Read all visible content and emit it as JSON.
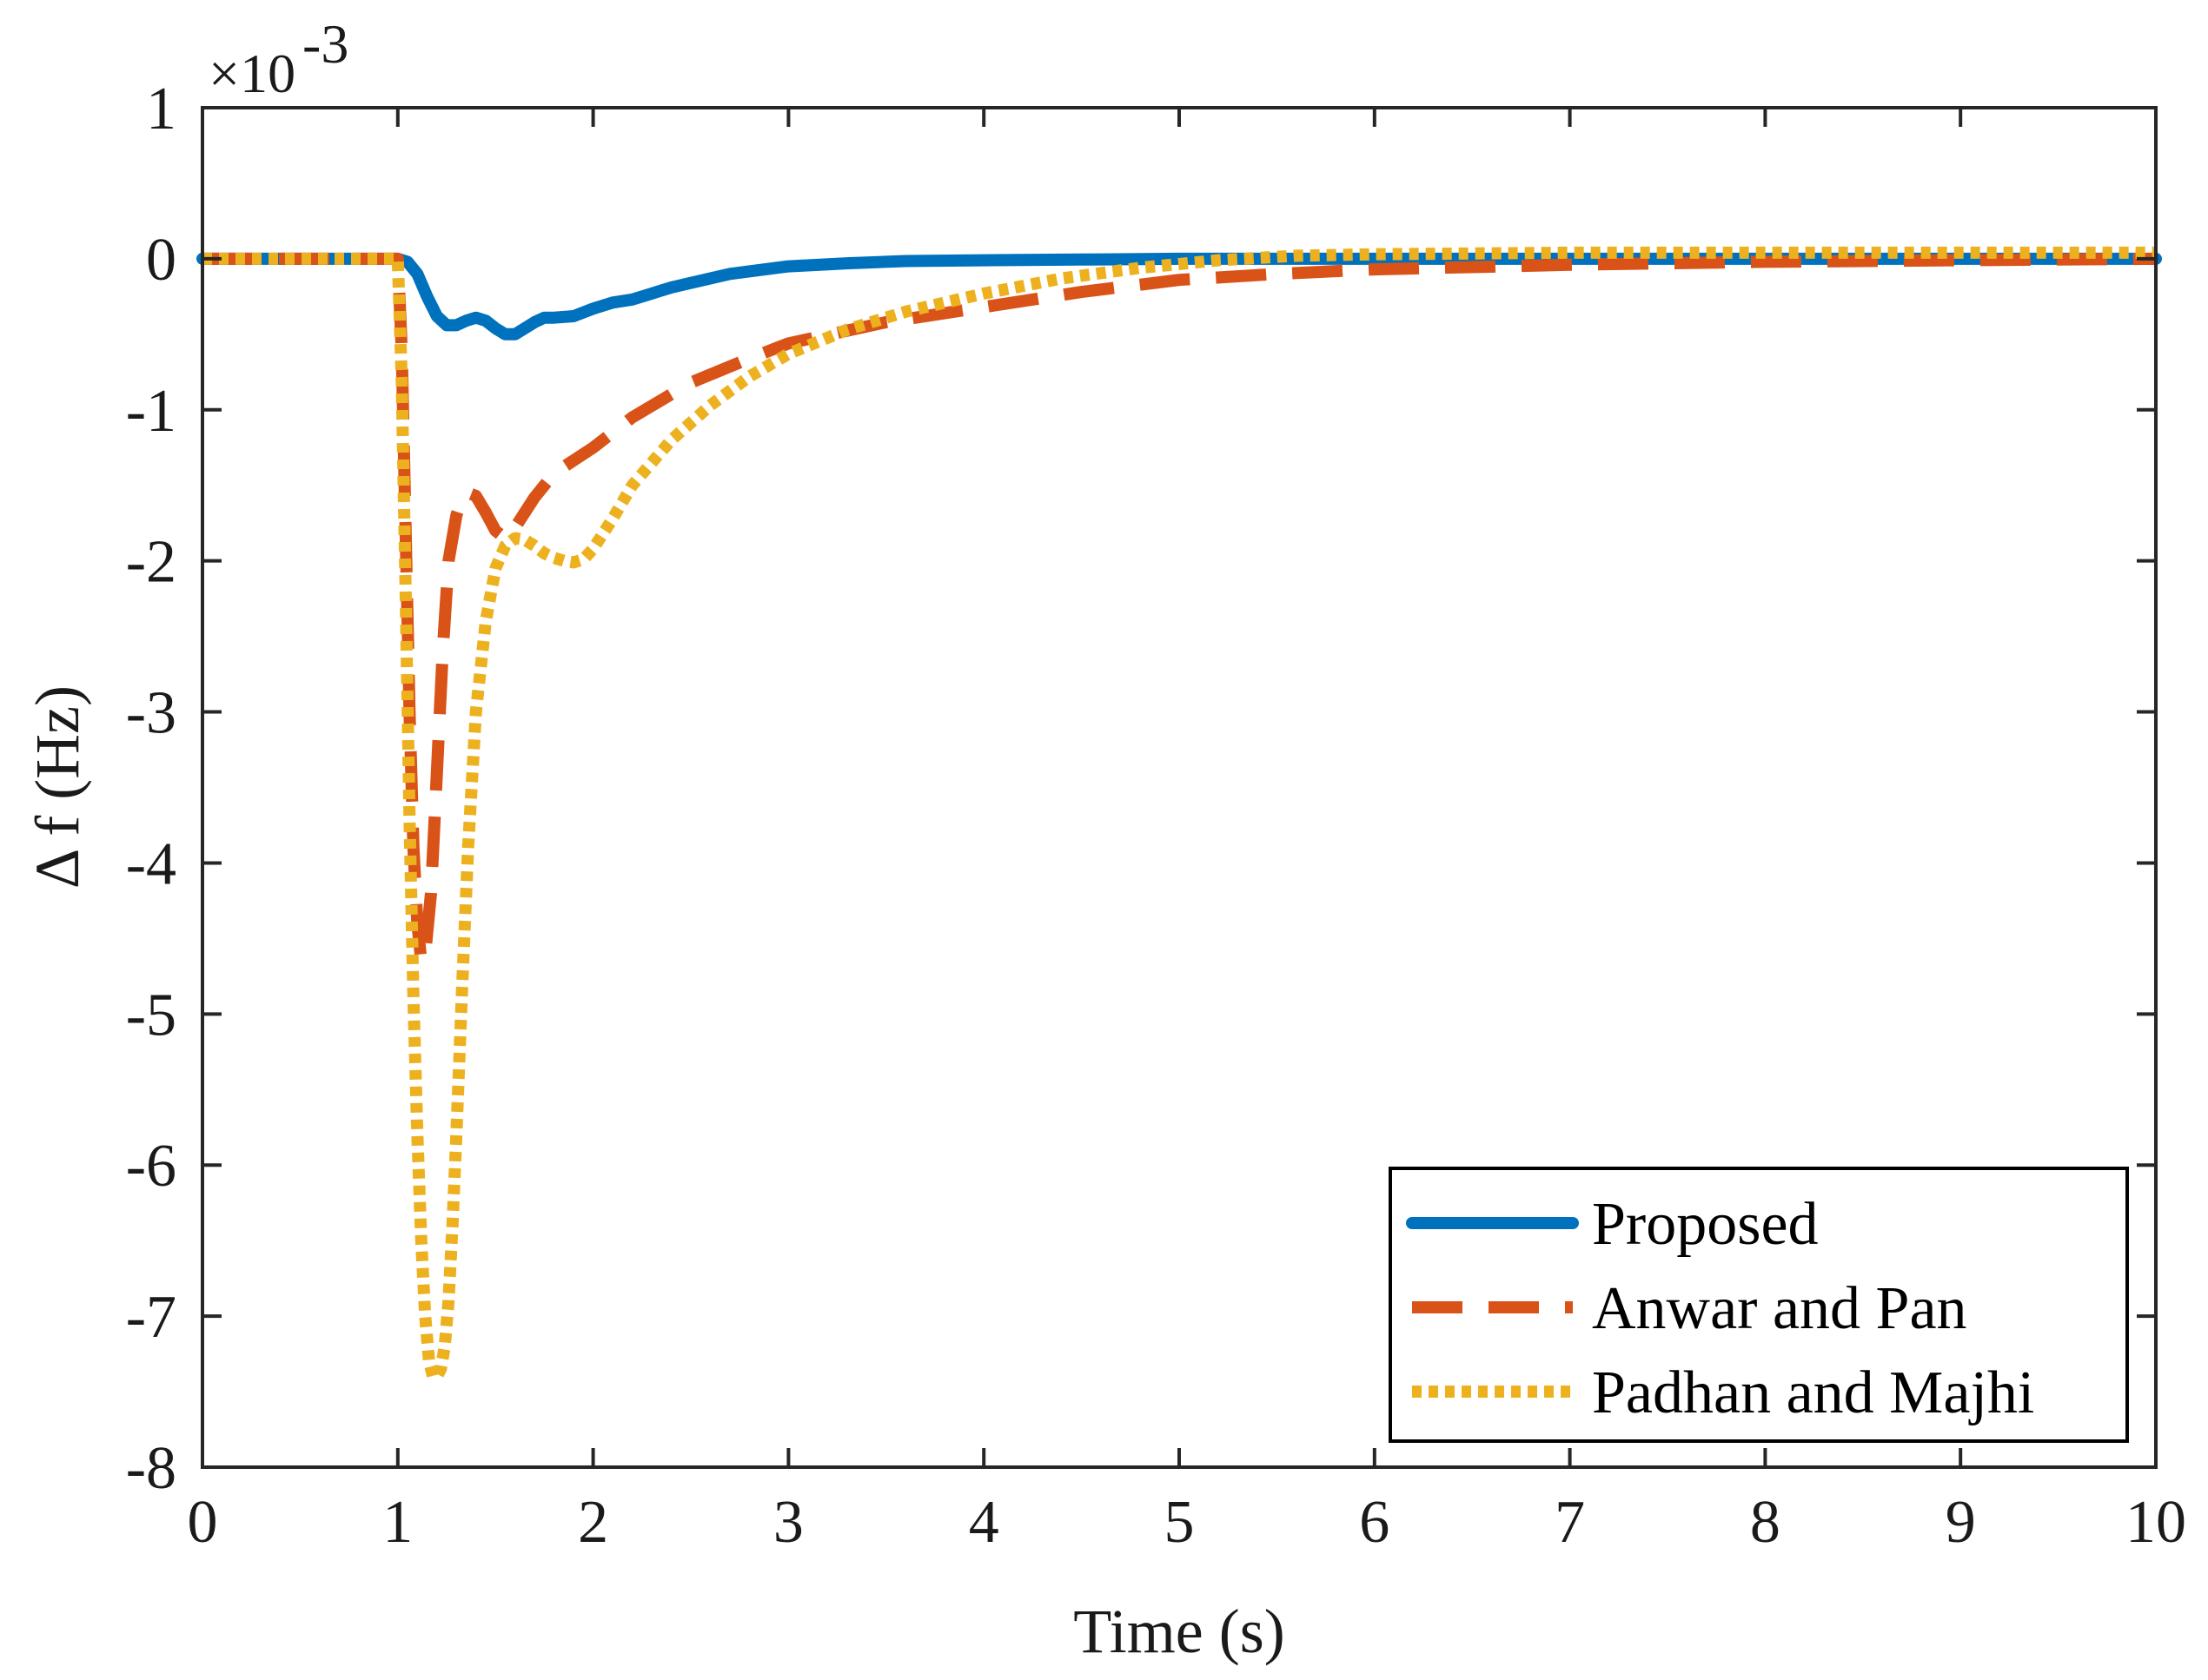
{
  "chart_data": {
    "type": "line",
    "title": "",
    "xlabel": "Time (s)",
    "ylabel": "Δ f (Hz)",
    "y_multiplier": "×10",
    "y_exponent": "-3",
    "xlim": [
      0,
      10
    ],
    "ylim": [
      -8,
      1
    ],
    "xticks": [
      0,
      1,
      2,
      3,
      4,
      5,
      6,
      7,
      8,
      9,
      10
    ],
    "yticks": [
      1,
      0,
      -1,
      -2,
      -3,
      -4,
      -5,
      -6,
      -7,
      -8
    ],
    "grid": false,
    "legend_position": "bottom-right",
    "series": [
      {
        "name": "Proposed",
        "style": "solid",
        "color": "#0072BD",
        "x": [
          0,
          1.0,
          1.05,
          1.1,
          1.15,
          1.2,
          1.25,
          1.3,
          1.35,
          1.4,
          1.45,
          1.5,
          1.55,
          1.6,
          1.65,
          1.7,
          1.75,
          1.8,
          1.9,
          2.0,
          2.1,
          2.2,
          2.3,
          2.4,
          2.5,
          2.7,
          3.0,
          3.3,
          3.6,
          4.0,
          4.5,
          5.0,
          6.0,
          8.0,
          10.0
        ],
        "values": [
          0,
          0,
          -0.02,
          -0.1,
          -0.25,
          -0.38,
          -0.44,
          -0.44,
          -0.41,
          -0.39,
          -0.41,
          -0.46,
          -0.5,
          -0.5,
          -0.46,
          -0.42,
          -0.39,
          -0.39,
          -0.38,
          -0.33,
          -0.29,
          -0.27,
          -0.23,
          -0.19,
          -0.16,
          -0.1,
          -0.05,
          -0.03,
          -0.015,
          -0.01,
          -0.005,
          0,
          0,
          0,
          0
        ]
      },
      {
        "name": "Anwar and Pan",
        "style": "dashed",
        "color": "#D95319",
        "x": [
          0,
          1.0,
          1.02,
          1.04,
          1.06,
          1.08,
          1.1,
          1.12,
          1.14,
          1.17,
          1.2,
          1.23,
          1.26,
          1.3,
          1.33,
          1.36,
          1.4,
          1.45,
          1.5,
          1.55,
          1.6,
          1.7,
          1.8,
          2.0,
          2.2,
          2.5,
          2.8,
          3.0,
          3.5,
          4.0,
          4.5,
          5.0,
          5.5,
          6.0,
          7.0,
          8.0,
          9.0,
          10.0
        ],
        "values": [
          0,
          0,
          -0.6,
          -1.8,
          -3.0,
          -3.9,
          -4.4,
          -4.65,
          -4.6,
          -4.2,
          -3.4,
          -2.6,
          -2.0,
          -1.7,
          -1.58,
          -1.55,
          -1.57,
          -1.68,
          -1.8,
          -1.85,
          -1.78,
          -1.58,
          -1.42,
          -1.25,
          -1.05,
          -0.82,
          -0.66,
          -0.56,
          -0.42,
          -0.32,
          -0.22,
          -0.14,
          -0.1,
          -0.07,
          -0.04,
          -0.02,
          -0.01,
          0
        ]
      },
      {
        "name": "Padhan and Majhi",
        "style": "dotted",
        "color": "#EDB120",
        "x": [
          0,
          1.0,
          1.02,
          1.04,
          1.06,
          1.08,
          1.1,
          1.12,
          1.14,
          1.16,
          1.18,
          1.2,
          1.22,
          1.24,
          1.26,
          1.28,
          1.3,
          1.33,
          1.36,
          1.4,
          1.45,
          1.5,
          1.55,
          1.6,
          1.65,
          1.7,
          1.75,
          1.8,
          1.85,
          1.9,
          1.95,
          2.0,
          2.1,
          2.2,
          2.4,
          2.6,
          2.8,
          3.0,
          3.3,
          3.6,
          4.0,
          4.4,
          4.8,
          5.2,
          5.6,
          6.0,
          7.0,
          8.0,
          9.0,
          10.0
        ],
        "values": [
          0,
          0,
          -0.8,
          -2.2,
          -3.7,
          -4.9,
          -5.8,
          -6.5,
          -7.0,
          -7.3,
          -7.4,
          -7.4,
          -7.35,
          -7.2,
          -6.9,
          -6.4,
          -5.8,
          -4.8,
          -3.9,
          -3.0,
          -2.4,
          -2.05,
          -1.9,
          -1.85,
          -1.86,
          -1.9,
          -1.95,
          -1.98,
          -2.0,
          -2.01,
          -1.99,
          -1.92,
          -1.72,
          -1.5,
          -1.2,
          -0.97,
          -0.78,
          -0.63,
          -0.47,
          -0.35,
          -0.23,
          -0.13,
          -0.06,
          -0.01,
          0.02,
          0.03,
          0.04,
          0.04,
          0.04,
          0.04
        ]
      }
    ]
  }
}
